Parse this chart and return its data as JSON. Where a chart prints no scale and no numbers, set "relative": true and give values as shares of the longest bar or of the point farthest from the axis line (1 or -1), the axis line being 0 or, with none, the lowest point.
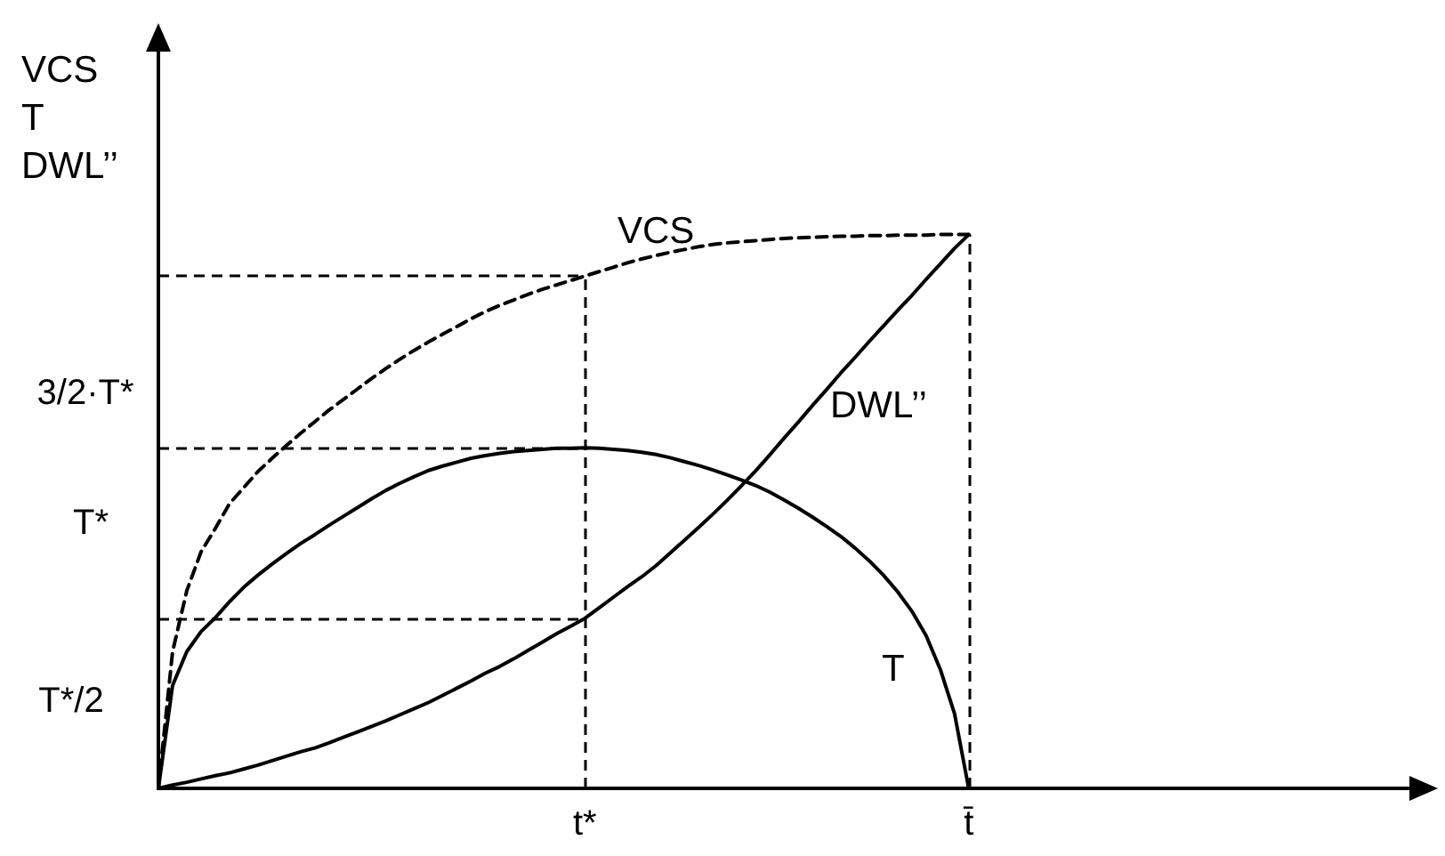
{
  "chart_data": {
    "type": "line",
    "relative": true,
    "ylabel": "VCS\nT\nDWL’’",
    "categories": [
      null,
      null,
      null,
      null,
      null,
      null,
      null,
      null,
      null,
      null,
      null,
      null,
      null,
      null,
      null,
      null,
      null,
      null,
      null,
      null,
      null,
      null,
      null,
      null,
      null,
      null,
      null,
      null,
      null,
      null,
      "t*",
      null,
      null,
      null,
      null,
      null,
      null,
      null,
      null,
      null,
      null,
      null,
      null,
      null,
      null,
      null,
      null,
      null,
      null,
      null,
      null,
      null,
      null,
      null,
      null,
      null,
      null,
      "t̄",
      null,
      null,
      null,
      null,
      null,
      null,
      null,
      null,
      null,
      null,
      null,
      null,
      null,
      null,
      null,
      null,
      null,
      null,
      null,
      null,
      null,
      null,
      null,
      null,
      null,
      null,
      null,
      null,
      null,
      null,
      null,
      null
    ],
    "series": [
      {
        "name": "VCS",
        "color": "#000000",
        "line_style": "dashed",
        "values": [
          0,
          0.247,
          0.357,
          0.427,
          0.469,
          0.514,
          0.543,
          0.572,
          0.596,
          0.619,
          0.641,
          0.662,
          0.683,
          0.702,
          0.721,
          0.74,
          0.758,
          0.775,
          0.791,
          0.806,
          0.82,
          0.834,
          0.848,
          0.861,
          0.872,
          0.882,
          0.892,
          0.901,
          0.909,
          0.917,
          0.925,
          0.933,
          0.941,
          0.949,
          0.956,
          0.962,
          0.968,
          0.973,
          0.978,
          0.982,
          0.985,
          0.987,
          0.989,
          0.991,
          0.993,
          0.994,
          0.995,
          0.996,
          0.997,
          0.997,
          0.998,
          0.998,
          0.999,
          0.999,
          0.999,
          1,
          1,
          1,
          null,
          null,
          null,
          null,
          null,
          null,
          null,
          null,
          null,
          null,
          null,
          null,
          null,
          null,
          null,
          null,
          null,
          null,
          null,
          null,
          null,
          null,
          null,
          null,
          null,
          null,
          null,
          null,
          null,
          null,
          null,
          null
        ]
      },
      {
        "name": "T",
        "color": "#000000",
        "values": [
          0,
          0.186,
          0.247,
          0.283,
          0.308,
          0.337,
          0.363,
          0.385,
          0.405,
          0.424,
          0.442,
          0.458,
          0.475,
          0.491,
          0.507,
          0.523,
          0.538,
          0.551,
          0.563,
          0.574,
          0.582,
          0.589,
          0.596,
          0.601,
          0.605,
          0.608,
          0.61,
          0.612,
          0.614,
          0.614,
          0.615,
          0.614,
          0.612,
          0.61,
          0.607,
          0.603,
          0.597,
          0.59,
          0.583,
          0.575,
          0.566,
          0.557,
          0.547,
          0.535,
          0.521,
          0.506,
          0.49,
          0.473,
          0.455,
          0.434,
          0.411,
          0.385,
          0.355,
          0.32,
          0.276,
          0.215,
          0.135,
          0,
          null,
          null,
          null,
          null,
          null,
          null,
          null,
          null,
          null,
          null,
          null,
          null,
          null,
          null,
          null,
          null,
          null,
          null,
          null,
          null,
          null,
          null,
          null,
          null,
          null,
          null,
          null,
          null,
          null,
          null,
          null,
          null
        ]
      },
      {
        "name": "DWL’’",
        "color": "#000000",
        "values": [
          0,
          0.006,
          0.011,
          0.017,
          0.023,
          0.028,
          0.035,
          0.042,
          0.05,
          0.058,
          0.066,
          0.073,
          0.082,
          0.092,
          0.102,
          0.112,
          0.122,
          0.133,
          0.144,
          0.155,
          0.168,
          0.181,
          0.194,
          0.208,
          0.22,
          0.234,
          0.249,
          0.264,
          0.279,
          0.293,
          0.307,
          0.326,
          0.345,
          0.364,
          0.382,
          0.402,
          0.425,
          0.448,
          0.471,
          0.495,
          0.52,
          0.546,
          0.573,
          0.602,
          0.632,
          0.661,
          0.691,
          0.72,
          0.75,
          0.778,
          0.807,
          0.835,
          0.863,
          0.89,
          0.919,
          0.947,
          0.975,
          1,
          null,
          null,
          null,
          null,
          null,
          null,
          null,
          null,
          null,
          null,
          null,
          null,
          null,
          null,
          null,
          null,
          null,
          null,
          null,
          null,
          null,
          null,
          null,
          null,
          null,
          null,
          null,
          null,
          null,
          null,
          null,
          null
        ]
      }
    ],
    "line_style": "solid",
    "marker": "none",
    "ref_lines": [
      {
        "axis": "y",
        "value": 0.925,
        "line_style": "dashed",
        "color": "#000000"
      },
      {
        "axis": "y",
        "value": 0.615,
        "line_style": "dashed",
        "color": "#000000"
      },
      {
        "axis": "y",
        "value": 0.307,
        "line_style": "dashed",
        "color": "#000000"
      },
      {
        "axis": "x",
        "value": "t*",
        "line_style": "dashed",
        "color": "#000000"
      },
      {
        "axis": "x",
        "value": "t̄",
        "line_style": "dashed",
        "color": "#000000"
      }
    ],
    "annotations": [
      "3/2·T*",
      "T*",
      "T*/2"
    ]
  }
}
